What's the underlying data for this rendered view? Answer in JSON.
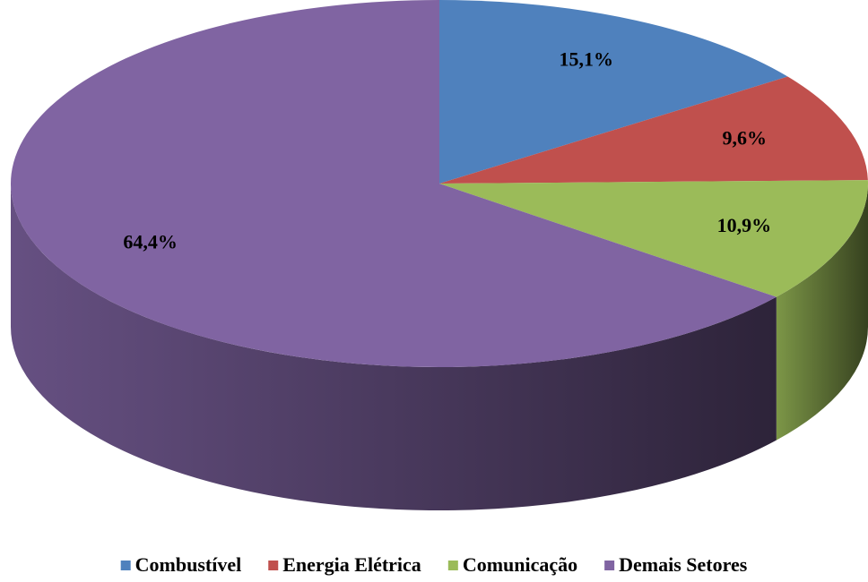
{
  "chart_data": {
    "type": "pie",
    "categories": [
      "Combustível",
      "Energia Elétrica",
      "Comunicação",
      "Demais Setores"
    ],
    "values": [
      15.1,
      9.6,
      10.9,
      64.4
    ],
    "value_labels": [
      "15,1%",
      "9,6%",
      "10,9%",
      "64,4%"
    ],
    "colors": [
      "#4f81bd",
      "#c0504d",
      "#9bbb59",
      "#8064a2"
    ],
    "legend": "bottom"
  }
}
